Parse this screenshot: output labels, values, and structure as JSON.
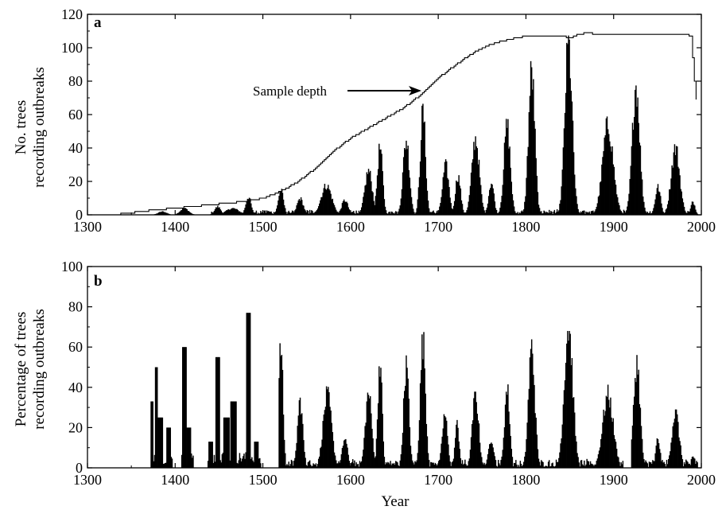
{
  "chart_data": [
    {
      "panel_label": "a",
      "type": "area",
      "xlabel": "",
      "ylabel_lines": [
        "No. trees",
        "recording outbreaks"
      ],
      "xlim": [
        1300,
        2000
      ],
      "ylim": [
        0,
        120
      ],
      "xticks": [
        1300,
        1400,
        1500,
        1600,
        1700,
        1800,
        1900,
        2000
      ],
      "yticks": [
        0,
        20,
        40,
        60,
        80,
        100,
        120
      ],
      "annotation": {
        "text": "Sample depth",
        "x": 1685,
        "y": 73
      },
      "sample_depth": {
        "x": [
          1330,
          1345,
          1360,
          1380,
          1400,
          1420,
          1440,
          1460,
          1480,
          1500,
          1520,
          1540,
          1560,
          1580,
          1600,
          1620,
          1640,
          1660,
          1680,
          1700,
          1720,
          1740,
          1760,
          1780,
          1800,
          1820,
          1840,
          1850,
          1860,
          1870,
          1880,
          1900,
          1920,
          1940,
          1960,
          1980,
          1988,
          1992,
          1995
        ],
        "y": [
          0,
          1,
          2,
          3,
          4,
          5,
          6,
          7,
          8,
          10,
          14,
          20,
          28,
          38,
          46,
          52,
          58,
          64,
          72,
          82,
          90,
          97,
          102,
          105,
          107,
          107,
          107,
          106,
          108,
          109,
          108,
          108,
          108,
          108,
          108,
          108,
          107,
          80,
          64
        ]
      },
      "outbreaks": {
        "baseline": 1,
        "peaks": [
          {
            "x": 1385,
            "y": 2,
            "w": 8
          },
          {
            "x": 1410,
            "y": 4,
            "w": 8
          },
          {
            "x": 1448,
            "y": 5,
            "w": 6
          },
          {
            "x": 1465,
            "y": 4,
            "w": 12
          },
          {
            "x": 1483,
            "y": 11,
            "w": 5
          },
          {
            "x": 1520,
            "y": 15,
            "w": 5
          },
          {
            "x": 1542,
            "y": 10,
            "w": 6
          },
          {
            "x": 1572,
            "y": 18,
            "w": 10
          },
          {
            "x": 1593,
            "y": 9,
            "w": 6
          },
          {
            "x": 1620,
            "y": 27,
            "w": 7
          },
          {
            "x": 1633,
            "y": 41,
            "w": 5
          },
          {
            "x": 1663,
            "y": 46,
            "w": 6
          },
          {
            "x": 1682,
            "y": 63,
            "w": 5
          },
          {
            "x": 1708,
            "y": 30,
            "w": 6
          },
          {
            "x": 1722,
            "y": 24,
            "w": 5
          },
          {
            "x": 1742,
            "y": 47,
            "w": 7
          },
          {
            "x": 1760,
            "y": 20,
            "w": 5
          },
          {
            "x": 1778,
            "y": 55,
            "w": 6
          },
          {
            "x": 1806,
            "y": 88,
            "w": 6
          },
          {
            "x": 1848,
            "y": 104,
            "w": 7
          },
          {
            "x": 1893,
            "y": 55,
            "w": 10
          },
          {
            "x": 1925,
            "y": 80,
            "w": 7
          },
          {
            "x": 1950,
            "y": 17,
            "w": 5
          },
          {
            "x": 1970,
            "y": 41,
            "w": 8
          },
          {
            "x": 1990,
            "y": 8,
            "w": 4
          }
        ]
      }
    },
    {
      "panel_label": "b",
      "type": "bar",
      "xlabel": "Year",
      "ylabel_lines": [
        "Percentage of trees",
        "recording outbreaks"
      ],
      "xlim": [
        1300,
        2000
      ],
      "ylim": [
        0,
        100
      ],
      "xticks": [
        1300,
        1400,
        1500,
        1600,
        1700,
        1800,
        1900,
        2000
      ],
      "yticks": [
        0,
        20,
        40,
        60,
        80,
        100
      ],
      "percentage": {
        "baseline": 1,
        "start": 1372,
        "peaks": [
          {
            "x": 1373,
            "y": 33,
            "w": 2
          },
          {
            "x": 1378,
            "y": 50,
            "w": 2
          },
          {
            "x": 1382,
            "y": 25,
            "w": 6
          },
          {
            "x": 1392,
            "y": 20,
            "w": 3
          },
          {
            "x": 1410,
            "y": 60,
            "w": 4
          },
          {
            "x": 1415,
            "y": 20,
            "w": 4
          },
          {
            "x": 1440,
            "y": 13,
            "w": 4
          },
          {
            "x": 1448,
            "y": 55,
            "w": 4
          },
          {
            "x": 1458,
            "y": 25,
            "w": 5
          },
          {
            "x": 1466,
            "y": 33,
            "w": 5
          },
          {
            "x": 1483,
            "y": 77,
            "w": 4
          },
          {
            "x": 1492,
            "y": 13,
            "w": 4
          },
          {
            "x": 1520,
            "y": 62,
            "w": 4
          },
          {
            "x": 1542,
            "y": 34,
            "w": 5
          },
          {
            "x": 1573,
            "y": 37,
            "w": 8
          },
          {
            "x": 1593,
            "y": 15,
            "w": 5
          },
          {
            "x": 1620,
            "y": 38,
            "w": 6
          },
          {
            "x": 1633,
            "y": 55,
            "w": 4
          },
          {
            "x": 1663,
            "y": 52,
            "w": 5
          },
          {
            "x": 1682,
            "y": 65,
            "w": 5
          },
          {
            "x": 1707,
            "y": 27,
            "w": 5
          },
          {
            "x": 1721,
            "y": 22,
            "w": 4
          },
          {
            "x": 1742,
            "y": 37,
            "w": 6
          },
          {
            "x": 1760,
            "y": 15,
            "w": 5
          },
          {
            "x": 1778,
            "y": 40,
            "w": 5
          },
          {
            "x": 1806,
            "y": 61,
            "w": 6
          },
          {
            "x": 1848,
            "y": 72,
            "w": 8
          },
          {
            "x": 1893,
            "y": 37,
            "w": 10
          },
          {
            "x": 1926,
            "y": 54,
            "w": 6
          },
          {
            "x": 1950,
            "y": 15,
            "w": 4
          },
          {
            "x": 1970,
            "y": 28,
            "w": 7
          },
          {
            "x": 1990,
            "y": 6,
            "w": 4
          }
        ],
        "gaps": [
          [
            1397,
            1406
          ],
          [
            1421,
            1436
          ],
          [
            1498,
            1517
          ],
          [
            1911,
            1919
          ]
        ]
      }
    }
  ]
}
